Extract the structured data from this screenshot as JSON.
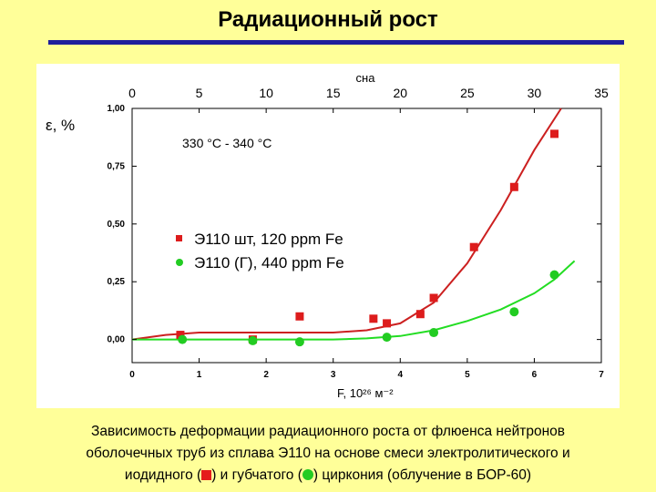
{
  "slide": {
    "title": "Радиационный рост",
    "caption_line1": "Зависимость деформации радиационного роста от флюенса нейтронов",
    "caption_line2": "оболочечных труб из сплава Э110 на основе смеси электролитического и",
    "caption_line3_a": "иодидного (",
    "caption_line3_b": ") и губчатого (",
    "caption_line3_c": ") циркония (облучение в БОР-60)"
  },
  "chart_data": {
    "type": "scatter",
    "title": "",
    "xlabel": "F, 10²⁶ м⁻²",
    "ylabel": "ε, %",
    "top_xlabel": "сна",
    "annotation": "330 °C - 340 °C",
    "xlim": [
      0,
      7
    ],
    "ylim": [
      -0.1,
      1.0
    ],
    "top_xlim": [
      0,
      35
    ],
    "x_ticks": [
      "0",
      "1",
      "2",
      "3",
      "4",
      "5",
      "6",
      "7"
    ],
    "top_ticks": [
      "0",
      "5",
      "10",
      "15",
      "20",
      "25",
      "30",
      "35"
    ],
    "y_ticks": [
      "0,00",
      "0,25",
      "0,50",
      "0,75",
      "1,00"
    ],
    "legend_position": "center-left",
    "colors": {
      "red": "#dd1c1c",
      "green": "#22cc22",
      "red_curve": "#cc2020",
      "green_curve": "#22dd22"
    },
    "series": [
      {
        "name": "Э110 шт, 120 ppm Fe",
        "marker": "square",
        "color": "#dd1c1c",
        "points": [
          [
            0.72,
            0.02
          ],
          [
            1.8,
            0.0
          ],
          [
            2.5,
            0.1
          ],
          [
            3.6,
            0.09
          ],
          [
            3.8,
            0.07
          ],
          [
            4.3,
            0.11
          ],
          [
            4.5,
            0.18
          ],
          [
            5.1,
            0.4
          ],
          [
            5.7,
            0.66
          ],
          [
            6.3,
            0.89
          ]
        ],
        "fit": [
          [
            0,
            0.0
          ],
          [
            0.5,
            0.02
          ],
          [
            1.0,
            0.03
          ],
          [
            1.5,
            0.03
          ],
          [
            2.0,
            0.03
          ],
          [
            2.5,
            0.03
          ],
          [
            3.0,
            0.03
          ],
          [
            3.5,
            0.04
          ],
          [
            4.0,
            0.07
          ],
          [
            4.5,
            0.16
          ],
          [
            5.0,
            0.33
          ],
          [
            5.5,
            0.56
          ],
          [
            6.0,
            0.82
          ],
          [
            6.4,
            1.03
          ]
        ]
      },
      {
        "name": "Э110 (Г), 440 ppm Fe",
        "marker": "circle",
        "color": "#22cc22",
        "points": [
          [
            0.75,
            0.0
          ],
          [
            1.8,
            -0.005
          ],
          [
            2.5,
            -0.01
          ],
          [
            3.8,
            0.01
          ],
          [
            4.5,
            0.03
          ],
          [
            5.7,
            0.12
          ],
          [
            6.3,
            0.28
          ]
        ],
        "fit": [
          [
            0,
            0.0
          ],
          [
            1.0,
            0.0
          ],
          [
            2.0,
            0.0
          ],
          [
            3.0,
            0.0
          ],
          [
            3.5,
            0.005
          ],
          [
            4.0,
            0.015
          ],
          [
            4.5,
            0.04
          ],
          [
            5.0,
            0.08
          ],
          [
            5.5,
            0.13
          ],
          [
            6.0,
            0.2
          ],
          [
            6.3,
            0.26
          ],
          [
            6.6,
            0.34
          ]
        ]
      }
    ]
  }
}
